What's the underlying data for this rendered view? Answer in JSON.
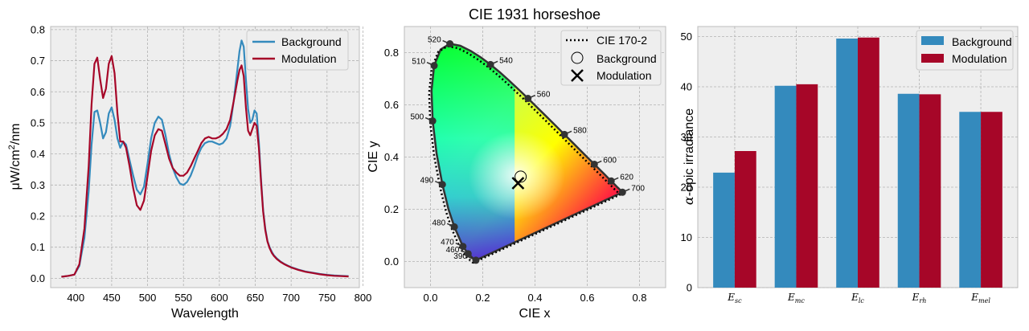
{
  "chart_data": [
    {
      "type": "line",
      "title": "",
      "xlabel": "Wavelength",
      "ylabel_parts": [
        "μW/cm",
        "2",
        "/nm"
      ],
      "xlim": [
        365,
        795
      ],
      "ylim": [
        -0.03,
        0.81
      ],
      "xticks": [
        400,
        450,
        500,
        550,
        600,
        650,
        700,
        750,
        800
      ],
      "yticks": [
        0.0,
        0.1,
        0.2,
        0.3,
        0.4,
        0.5,
        0.6,
        0.7,
        0.8
      ],
      "grid": true,
      "legend": "top-right",
      "series": [
        {
          "name": "Background",
          "color": "#348ABD",
          "x": [
            380,
            390,
            398,
            405,
            412,
            418,
            422,
            426,
            430,
            434,
            438,
            442,
            446,
            450,
            454,
            458,
            462,
            466,
            470,
            475,
            480,
            485,
            490,
            495,
            500,
            505,
            510,
            515,
            520,
            525,
            530,
            535,
            540,
            545,
            550,
            555,
            560,
            565,
            570,
            575,
            580,
            585,
            590,
            595,
            600,
            605,
            610,
            615,
            620,
            625,
            628,
            631,
            634,
            637,
            640,
            643,
            646,
            649,
            652,
            655,
            658,
            661,
            664,
            667,
            670,
            673,
            676,
            680,
            685,
            690,
            695,
            700,
            710,
            720,
            730,
            740,
            750,
            760,
            770,
            780
          ],
          "y": [
            0.005,
            0.008,
            0.012,
            0.04,
            0.13,
            0.28,
            0.43,
            0.535,
            0.54,
            0.5,
            0.45,
            0.47,
            0.53,
            0.55,
            0.51,
            0.45,
            0.42,
            0.44,
            0.43,
            0.38,
            0.33,
            0.285,
            0.27,
            0.295,
            0.37,
            0.45,
            0.5,
            0.52,
            0.51,
            0.46,
            0.4,
            0.355,
            0.325,
            0.305,
            0.3,
            0.31,
            0.33,
            0.36,
            0.395,
            0.42,
            0.435,
            0.44,
            0.44,
            0.435,
            0.43,
            0.435,
            0.45,
            0.49,
            0.57,
            0.67,
            0.73,
            0.765,
            0.745,
            0.64,
            0.545,
            0.5,
            0.51,
            0.54,
            0.53,
            0.44,
            0.32,
            0.22,
            0.16,
            0.12,
            0.1,
            0.085,
            0.074,
            0.064,
            0.054,
            0.047,
            0.041,
            0.036,
            0.028,
            0.022,
            0.018,
            0.014,
            0.011,
            0.009,
            0.008,
            0.007
          ]
        },
        {
          "name": "Modulation",
          "color": "#A60628",
          "x": [
            380,
            390,
            398,
            405,
            412,
            418,
            422,
            426,
            430,
            434,
            438,
            442,
            446,
            450,
            454,
            458,
            462,
            466,
            470,
            475,
            480,
            485,
            490,
            495,
            500,
            505,
            510,
            515,
            520,
            525,
            530,
            535,
            540,
            545,
            550,
            555,
            560,
            565,
            570,
            575,
            580,
            585,
            590,
            595,
            600,
            605,
            610,
            615,
            620,
            625,
            628,
            631,
            634,
            637,
            640,
            643,
            646,
            649,
            652,
            655,
            658,
            661,
            664,
            667,
            670,
            673,
            676,
            680,
            685,
            690,
            695,
            700,
            710,
            720,
            730,
            740,
            750,
            760,
            770,
            780
          ],
          "y": [
            0.005,
            0.008,
            0.012,
            0.045,
            0.16,
            0.36,
            0.56,
            0.69,
            0.71,
            0.64,
            0.58,
            0.61,
            0.69,
            0.715,
            0.66,
            0.53,
            0.44,
            0.44,
            0.42,
            0.36,
            0.29,
            0.235,
            0.22,
            0.25,
            0.33,
            0.41,
            0.46,
            0.48,
            0.475,
            0.43,
            0.385,
            0.355,
            0.34,
            0.33,
            0.33,
            0.34,
            0.36,
            0.385,
            0.41,
            0.435,
            0.45,
            0.455,
            0.45,
            0.45,
            0.455,
            0.465,
            0.48,
            0.51,
            0.57,
            0.635,
            0.67,
            0.685,
            0.65,
            0.55,
            0.475,
            0.46,
            0.48,
            0.5,
            0.49,
            0.42,
            0.31,
            0.215,
            0.155,
            0.118,
            0.097,
            0.082,
            0.072,
            0.062,
            0.053,
            0.046,
            0.04,
            0.035,
            0.027,
            0.021,
            0.017,
            0.013,
            0.01,
            0.008,
            0.007,
            0.006
          ]
        }
      ]
    },
    {
      "type": "scatter",
      "title": "CIE 1931 horseshoe",
      "xlabel": "CIE x",
      "ylabel": "CIE y",
      "xlim": [
        -0.1,
        0.9
      ],
      "ylim": [
        -0.1,
        0.9
      ],
      "xticks": [
        0.0,
        0.2,
        0.4,
        0.6,
        0.8
      ],
      "yticks": [
        0.0,
        0.2,
        0.4,
        0.6,
        0.8
      ],
      "grid": true,
      "legend": "top-right",
      "locus": {
        "name": "CIE 170-2",
        "color": "#333333",
        "points": [
          [
            0.1741,
            0.005
          ],
          [
            0.1738,
            0.0049
          ],
          [
            0.1733,
            0.0048
          ],
          [
            0.1726,
            0.0048
          ],
          [
            0.1714,
            0.0051
          ],
          [
            0.1689,
            0.0069
          ],
          [
            0.1644,
            0.0109
          ],
          [
            0.1566,
            0.0177
          ],
          [
            0.144,
            0.0297
          ],
          [
            0.1241,
            0.0578
          ],
          [
            0.0913,
            0.1327
          ],
          [
            0.0687,
            0.2007
          ],
          [
            0.0454,
            0.295
          ],
          [
            0.0235,
            0.4127
          ],
          [
            0.0082,
            0.5384
          ],
          [
            0.0039,
            0.6548
          ],
          [
            0.0139,
            0.7502
          ],
          [
            0.0389,
            0.812
          ],
          [
            0.0743,
            0.8338
          ],
          [
            0.1142,
            0.8262
          ],
          [
            0.1547,
            0.8059
          ],
          [
            0.1929,
            0.7816
          ],
          [
            0.2296,
            0.7543
          ],
          [
            0.2658,
            0.7243
          ],
          [
            0.3016,
            0.6923
          ],
          [
            0.3373,
            0.6589
          ],
          [
            0.3731,
            0.6245
          ],
          [
            0.4087,
            0.5896
          ],
          [
            0.4441,
            0.5547
          ],
          [
            0.4788,
            0.5202
          ],
          [
            0.5125,
            0.4866
          ],
          [
            0.5448,
            0.4544
          ],
          [
            0.5752,
            0.4242
          ],
          [
            0.6029,
            0.3965
          ],
          [
            0.627,
            0.3725
          ],
          [
            0.6482,
            0.3514
          ],
          [
            0.6658,
            0.334
          ],
          [
            0.6801,
            0.3197
          ],
          [
            0.6915,
            0.3083
          ],
          [
            0.7006,
            0.2993
          ],
          [
            0.7079,
            0.292
          ],
          [
            0.714,
            0.2859
          ],
          [
            0.719,
            0.2809
          ],
          [
            0.723,
            0.277
          ],
          [
            0.726,
            0.274
          ],
          [
            0.7283,
            0.2717
          ],
          [
            0.73,
            0.27
          ],
          [
            0.7311,
            0.2689
          ],
          [
            0.732,
            0.268
          ],
          [
            0.7327,
            0.2673
          ],
          [
            0.7334,
            0.2666
          ],
          [
            0.734,
            0.266
          ],
          [
            0.7344,
            0.2656
          ],
          [
            0.7346,
            0.2654
          ],
          [
            0.7347,
            0.2653
          ]
        ]
      },
      "wavelength_markers": [
        {
          "label": "390",
          "x": 0.1738,
          "y": 0.0049,
          "side": "left"
        },
        {
          "label": "460",
          "x": 0.144,
          "y": 0.0297,
          "side": "left"
        },
        {
          "label": "470",
          "x": 0.1241,
          "y": 0.0578,
          "side": "left"
        },
        {
          "label": "480",
          "x": 0.0913,
          "y": 0.1327,
          "side": "left"
        },
        {
          "label": "490",
          "x": 0.0454,
          "y": 0.295,
          "side": "left"
        },
        {
          "label": "500",
          "x": 0.0082,
          "y": 0.5384,
          "side": "left"
        },
        {
          "label": "510",
          "x": 0.0139,
          "y": 0.7502,
          "side": "left"
        },
        {
          "label": "520",
          "x": 0.0743,
          "y": 0.8338,
          "side": "left"
        },
        {
          "label": "540",
          "x": 0.2296,
          "y": 0.7543,
          "side": "right"
        },
        {
          "label": "560",
          "x": 0.3731,
          "y": 0.6245,
          "side": "right"
        },
        {
          "label": "580",
          "x": 0.5125,
          "y": 0.4866,
          "side": "right"
        },
        {
          "label": "600",
          "x": 0.627,
          "y": 0.3725,
          "side": "right"
        },
        {
          "label": "620",
          "x": 0.6915,
          "y": 0.3083,
          "side": "right"
        },
        {
          "label": "700",
          "x": 0.7347,
          "y": 0.2653,
          "side": "right"
        }
      ],
      "points": [
        {
          "name": "Background",
          "x": 0.345,
          "y": 0.325,
          "marker": "open-circle"
        },
        {
          "name": "Modulation",
          "x": 0.335,
          "y": 0.3,
          "marker": "x"
        }
      ]
    },
    {
      "type": "bar",
      "title": "",
      "xlabel": "",
      "ylabel_parts": [
        "α",
        "-opic irradiance"
      ],
      "categories": [
        {
          "base": "E",
          "sub": "sc"
        },
        {
          "base": "E",
          "sub": "mc"
        },
        {
          "base": "E",
          "sub": "lc"
        },
        {
          "base": "E",
          "sub": "rh"
        },
        {
          "base": "E",
          "sub": "mel"
        }
      ],
      "ylim": [
        0,
        52
      ],
      "yticks": [
        0,
        10,
        20,
        30,
        40,
        50
      ],
      "grid": true,
      "legend": "top-right",
      "series": [
        {
          "name": "Background",
          "color": "#348ABD",
          "values": [
            22.9,
            40.2,
            49.6,
            38.6,
            35.0
          ]
        },
        {
          "name": "Modulation",
          "color": "#A60628",
          "values": [
            27.2,
            40.5,
            49.8,
            38.5,
            35.0
          ]
        }
      ]
    }
  ]
}
